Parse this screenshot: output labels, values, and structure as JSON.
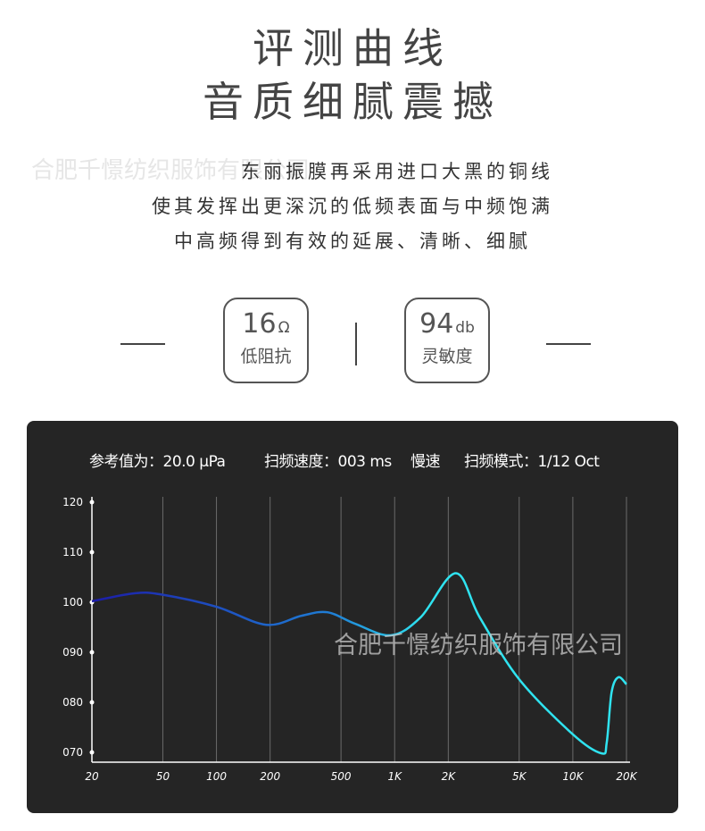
{
  "heading": {
    "line1": "评测曲线",
    "line2": "音质细腻震撼"
  },
  "description": [
    "东丽振膜再采用进口大黑的铜线",
    "使其发挥出更深沉的低频表面与中频饱满",
    "中高频得到有效的延展、清晰、细腻"
  ],
  "watermark": "合肥千憬纺织服饰有限公司",
  "specs": [
    {
      "value": "16",
      "unit": "Ω",
      "label": "低阻抗"
    },
    {
      "value": "94",
      "unit": "db",
      "label": "灵敏度"
    }
  ],
  "chart_header": {
    "ref": "参考值为：20.0 µPa",
    "speed": "扫频速度：003 ms",
    "speed_mode": "慢速",
    "mode": "扫频模式：1/12 Oct"
  },
  "chart_data": {
    "type": "line",
    "x_scale": "log",
    "xlim": [
      20,
      20000
    ],
    "ylim": [
      70,
      120
    ],
    "x_ticks": [
      {
        "v": 20,
        "label": "20"
      },
      {
        "v": 50,
        "label": "50"
      },
      {
        "v": 100,
        "label": "100"
      },
      {
        "v": 200,
        "label": "200"
      },
      {
        "v": 500,
        "label": "500"
      },
      {
        "v": 1000,
        "label": "1K"
      },
      {
        "v": 2000,
        "label": "2K"
      },
      {
        "v": 5000,
        "label": "5K"
      },
      {
        "v": 10000,
        "label": "10K"
      },
      {
        "v": 20000,
        "label": "20K"
      }
    ],
    "y_ticks": [
      {
        "v": 120,
        "label": "120"
      },
      {
        "v": 110,
        "label": "110"
      },
      {
        "v": 100,
        "label": "100"
      },
      {
        "v": 90,
        "label": "090"
      },
      {
        "v": 80,
        "label": "080"
      },
      {
        "v": 70,
        "label": "070"
      }
    ],
    "grid": "vertical",
    "colors": {
      "start": "#1c1ca8",
      "mid": "#1f7fd6",
      "end": "#2fe3f0"
    },
    "points": [
      [
        20,
        100.2
      ],
      [
        35,
        101.8
      ],
      [
        50,
        101.5
      ],
      [
        100,
        99.1
      ],
      [
        190,
        95.5
      ],
      [
        300,
        97.3
      ],
      [
        420,
        98
      ],
      [
        600,
        95.7
      ],
      [
        950,
        93.4
      ],
      [
        1400,
        97
      ],
      [
        2200,
        105.8
      ],
      [
        3000,
        97
      ],
      [
        5000,
        84.6
      ],
      [
        10000,
        73.6
      ],
      [
        14500,
        69.8
      ],
      [
        15500,
        72
      ],
      [
        16500,
        82
      ],
      [
        18000,
        85
      ],
      [
        20000,
        83.6
      ]
    ]
  }
}
